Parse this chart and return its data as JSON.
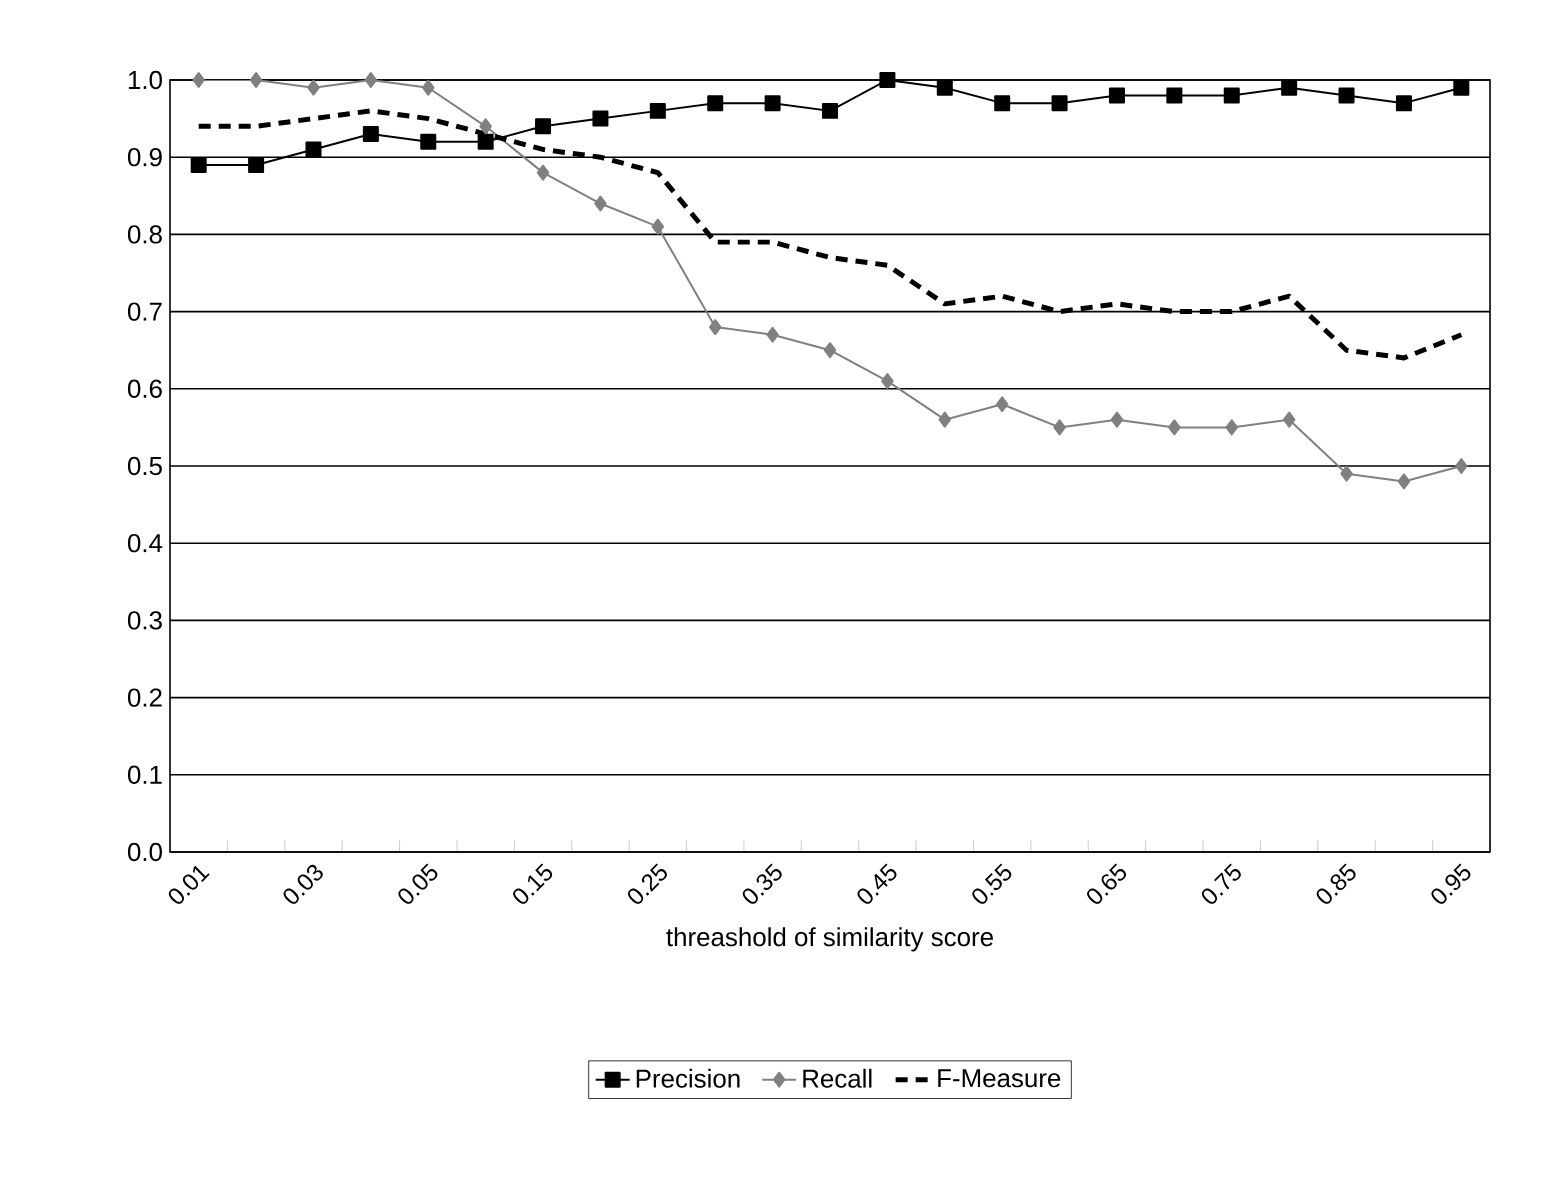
{
  "chart_data": {
    "type": "line",
    "xlabel": "threashold of similarity score",
    "categories": [
      "0.01",
      null,
      "0.03",
      null,
      "0.05",
      null,
      "0.15",
      null,
      "0.25",
      null,
      "0.35",
      null,
      "0.45",
      null,
      "0.55",
      null,
      "0.65",
      null,
      "0.75",
      null,
      "0.85",
      null,
      "0.95"
    ],
    "series": [
      {
        "name": "Precision",
        "color": "#000000",
        "marker": "square",
        "line_style": "solid",
        "values": [
          0.89,
          0.89,
          0.91,
          0.93,
          0.92,
          0.92,
          0.94,
          0.95,
          0.96,
          0.97,
          0.97,
          0.96,
          1.0,
          0.99,
          0.97,
          0.97,
          0.98,
          0.98,
          0.98,
          0.99,
          0.98,
          0.97,
          0.99
        ]
      },
      {
        "name": "Recall",
        "color": "#808080",
        "marker": "diamond",
        "line_style": "solid",
        "values": [
          1.0,
          1.0,
          0.99,
          1.0,
          0.99,
          0.94,
          0.88,
          0.84,
          0.81,
          0.68,
          0.67,
          0.65,
          0.61,
          0.56,
          0.58,
          0.55,
          0.56,
          0.55,
          0.55,
          0.56,
          0.49,
          0.48,
          0.5
        ]
      },
      {
        "name": "F-Measure",
        "color": "#000000",
        "marker": "none",
        "line_style": "dashed",
        "values": [
          0.94,
          0.94,
          0.95,
          0.96,
          0.95,
          0.93,
          0.91,
          0.9,
          0.88,
          0.79,
          0.79,
          0.77,
          0.76,
          0.71,
          0.72,
          0.7,
          0.71,
          0.7,
          0.7,
          0.72,
          0.65,
          0.64,
          0.67
        ]
      }
    ],
    "ylim": [
      0,
      1
    ],
    "yticks": [
      {
        "value": 0,
        "label": "0.0"
      },
      0.1,
      0.2,
      0.3,
      0.4,
      0.5,
      0.6,
      0.7,
      0.8,
      0.9,
      {
        "value": 1,
        "label": "1.0"
      }
    ],
    "grid": "y",
    "legend": "bottom"
  }
}
